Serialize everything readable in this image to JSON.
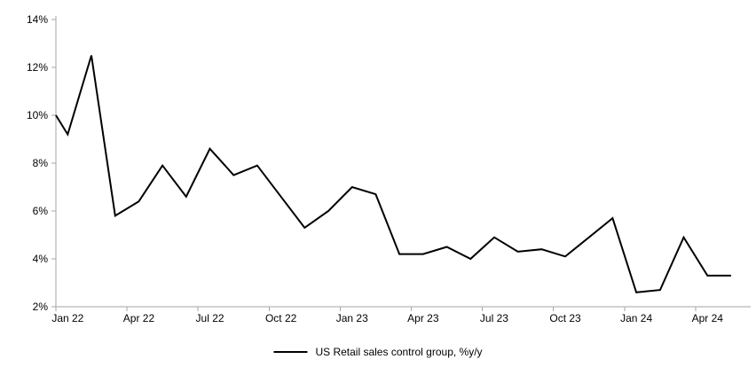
{
  "chart_data": {
    "type": "line",
    "title": "",
    "legend_label": "US Retail sales control group, %y/y",
    "legend_position": "bottom-center",
    "grid": false,
    "ylim": [
      2,
      14
    ],
    "y_tick_step": 2,
    "y_ticks": [
      {
        "value": 14,
        "label": "14%"
      },
      {
        "value": 12,
        "label": "12%"
      },
      {
        "value": 10,
        "label": "10%"
      },
      {
        "value": 8,
        "label": "8%"
      },
      {
        "value": 6,
        "label": "6%"
      },
      {
        "value": 4,
        "label": "4%"
      },
      {
        "value": 2,
        "label": "2%"
      }
    ],
    "x_tick_labels": [
      "Jan 22",
      "Apr 22",
      "Jul 22",
      "Oct 22",
      "Jan 23",
      "Apr 23",
      "Jul 23",
      "Oct 23",
      "Jan 24",
      "Apr 24"
    ],
    "x_tick_every_months": 3,
    "months": [
      "Jan 22",
      "Feb 22",
      "Mar 22",
      "Apr 22",
      "May 22",
      "Jun 22",
      "Jul 22",
      "Aug 22",
      "Sep 22",
      "Oct 22",
      "Nov 22",
      "Dec 22",
      "Jan 23",
      "Feb 23",
      "Mar 23",
      "Apr 23",
      "May 23",
      "Jun 23",
      "Jul 23",
      "Aug 23",
      "Sep 23",
      "Oct 23",
      "Nov 23",
      "Dec 23",
      "Jan 24",
      "Feb 24",
      "Mar 24",
      "Apr 24",
      "May 24"
    ],
    "series": [
      {
        "name": "US Retail sales control group, %y/y",
        "values": [
          9.2,
          12.5,
          5.8,
          6.4,
          7.9,
          6.6,
          8.6,
          7.5,
          7.9,
          6.6,
          5.3,
          6.0,
          7.0,
          6.7,
          4.2,
          4.2,
          4.5,
          4.0,
          4.9,
          4.3,
          4.4,
          4.1,
          4.9,
          5.7,
          2.6,
          2.7,
          4.9,
          3.3,
          3.3
        ]
      }
    ],
    "left_edge_entry_value": 10.0,
    "colors": {
      "line": "#000000",
      "axis": "#a6a6a6",
      "text": "#000000",
      "background": "#ffffff"
    }
  }
}
